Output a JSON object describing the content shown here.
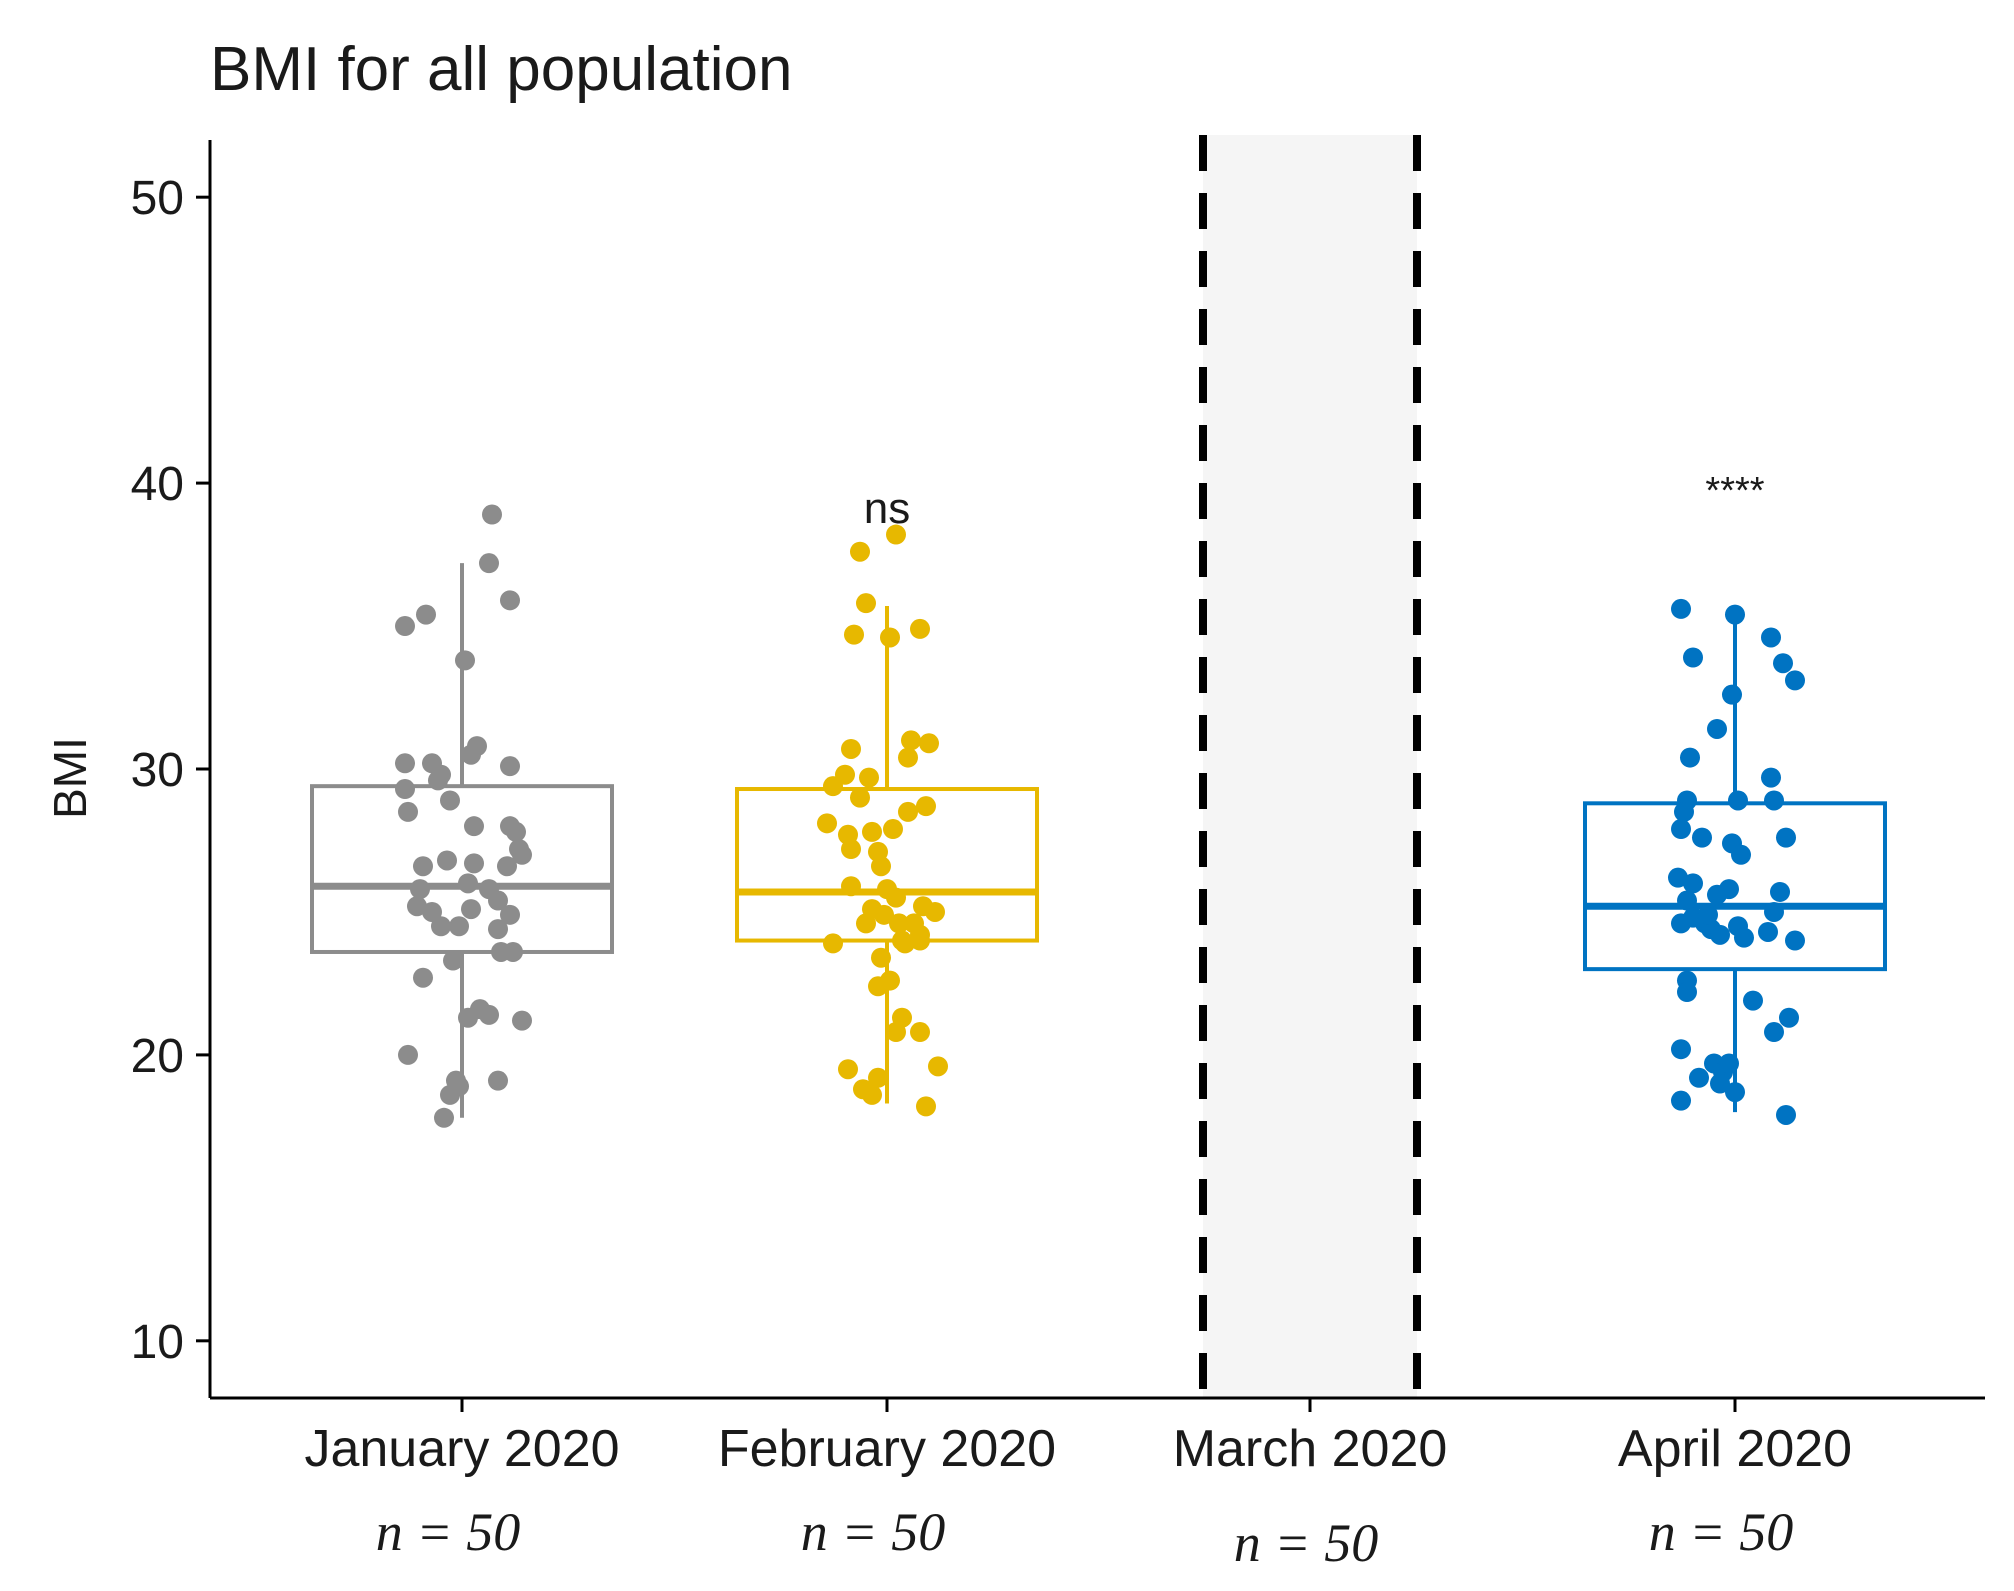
{
  "chart_data": {
    "type": "box",
    "title": "BMI for all population",
    "xlabel": "",
    "ylabel": "BMI",
    "ylim": [
      8,
      52
    ],
    "yticks": [
      10,
      20,
      30,
      40,
      50
    ],
    "grid": false,
    "legend": "none",
    "categories": [
      "January 2020",
      "February 2020",
      "March 2020",
      "April 2020"
    ],
    "n_labels": [
      "n = 50",
      "n = 50",
      "n = 50",
      "n = 50"
    ],
    "shaded_category": "March 2020",
    "groups": [
      {
        "name": "January 2020",
        "color": "#8C8C8C",
        "significance": "",
        "box": {
          "whisker_low": 17.8,
          "q1": 23.6,
          "median": 25.9,
          "q3": 29.4,
          "whisker_high": 37.2
        },
        "points": [
          [
            0.1,
            38.9
          ],
          [
            0.09,
            37.2
          ],
          [
            0.16,
            35.9
          ],
          [
            -0.12,
            35.4
          ],
          [
            -0.19,
            35.0
          ],
          [
            0.01,
            33.8
          ],
          [
            0.05,
            30.8
          ],
          [
            0.03,
            30.5
          ],
          [
            -0.19,
            30.2
          ],
          [
            -0.1,
            30.2
          ],
          [
            -0.07,
            29.8
          ],
          [
            -0.08,
            29.6
          ],
          [
            0.16,
            30.1
          ],
          [
            -0.19,
            29.3
          ],
          [
            -0.04,
            28.9
          ],
          [
            -0.18,
            28.5
          ],
          [
            0.04,
            28.0
          ],
          [
            0.16,
            28.0
          ],
          [
            0.18,
            27.8
          ],
          [
            0.19,
            27.2
          ],
          [
            0.2,
            27.0
          ],
          [
            -0.13,
            26.6
          ],
          [
            -0.05,
            26.8
          ],
          [
            0.04,
            26.7
          ],
          [
            0.15,
            26.6
          ],
          [
            -0.14,
            25.8
          ],
          [
            0.02,
            26.0
          ],
          [
            0.09,
            25.8
          ],
          [
            -0.15,
            25.2
          ],
          [
            -0.1,
            25.0
          ],
          [
            0.03,
            25.1
          ],
          [
            0.12,
            25.4
          ],
          [
            0.16,
            24.9
          ],
          [
            -0.07,
            24.5
          ],
          [
            -0.01,
            24.5
          ],
          [
            0.12,
            24.4
          ],
          [
            0.13,
            23.6
          ],
          [
            0.17,
            23.6
          ],
          [
            -0.03,
            23.3
          ],
          [
            -0.13,
            22.7
          ],
          [
            0.06,
            21.6
          ],
          [
            0.02,
            21.3
          ],
          [
            0.09,
            21.4
          ],
          [
            0.2,
            21.2
          ],
          [
            -0.18,
            20.0
          ],
          [
            -0.02,
            19.1
          ],
          [
            -0.04,
            18.6
          ],
          [
            -0.06,
            17.8
          ],
          [
            0.12,
            19.1
          ],
          [
            -0.01,
            18.9
          ]
        ]
      },
      {
        "name": "February 2020",
        "color": "#E7B800",
        "significance": "ns",
        "box": {
          "whisker_low": 18.3,
          "q1": 24.0,
          "median": 25.7,
          "q3": 29.3,
          "whisker_high": 35.7
        },
        "points": [
          [
            0.03,
            38.2
          ],
          [
            -0.09,
            37.6
          ],
          [
            -0.07,
            35.8
          ],
          [
            -0.11,
            34.7
          ],
          [
            0.01,
            34.6
          ],
          [
            0.11,
            34.9
          ],
          [
            0.08,
            31.0
          ],
          [
            0.14,
            30.9
          ],
          [
            0.07,
            30.4
          ],
          [
            -0.12,
            30.7
          ],
          [
            -0.14,
            29.8
          ],
          [
            -0.06,
            29.7
          ],
          [
            -0.18,
            29.4
          ],
          [
            -0.09,
            29.0
          ],
          [
            0.13,
            28.7
          ],
          [
            -0.2,
            28.1
          ],
          [
            0.07,
            28.5
          ],
          [
            -0.13,
            27.7
          ],
          [
            -0.05,
            27.8
          ],
          [
            0.02,
            27.9
          ],
          [
            -0.12,
            27.2
          ],
          [
            -0.03,
            27.1
          ],
          [
            -0.02,
            26.6
          ],
          [
            -0.12,
            25.9
          ],
          [
            0.03,
            25.5
          ],
          [
            0.12,
            25.2
          ],
          [
            0.16,
            25.0
          ],
          [
            -0.05,
            25.1
          ],
          [
            -0.01,
            24.9
          ],
          [
            0.04,
            24.6
          ],
          [
            0.09,
            24.6
          ],
          [
            0.11,
            24.2
          ],
          [
            -0.18,
            23.9
          ],
          [
            0.05,
            24.0
          ],
          [
            0.11,
            24.0
          ],
          [
            0.01,
            22.6
          ],
          [
            -0.03,
            22.4
          ],
          [
            0.05,
            21.3
          ],
          [
            0.03,
            20.8
          ],
          [
            0.11,
            20.8
          ],
          [
            -0.13,
            19.5
          ],
          [
            0.17,
            19.6
          ],
          [
            -0.03,
            19.2
          ],
          [
            -0.08,
            18.8
          ],
          [
            -0.05,
            18.6
          ],
          [
            0.13,
            18.2
          ],
          [
            -0.02,
            23.4
          ],
          [
            0.06,
            23.9
          ],
          [
            -0.07,
            24.6
          ],
          [
            0.0,
            25.8
          ]
        ]
      },
      {
        "name": "March 2020",
        "color": "#8C8C8C",
        "significance": "",
        "box": null,
        "points": []
      },
      {
        "name": "April 2020",
        "color": "#0073C2",
        "significance": "****",
        "box": {
          "whisker_low": 18.0,
          "q1": 23.0,
          "median": 25.2,
          "q3": 28.8,
          "whisker_high": 35.5
        },
        "points": [
          [
            -0.18,
            35.6
          ],
          [
            0.0,
            35.4
          ],
          [
            0.12,
            34.6
          ],
          [
            0.16,
            33.7
          ],
          [
            -0.14,
            33.9
          ],
          [
            0.2,
            33.1
          ],
          [
            -0.01,
            32.6
          ],
          [
            -0.06,
            31.4
          ],
          [
            -0.15,
            30.4
          ],
          [
            0.12,
            29.7
          ],
          [
            -0.16,
            28.9
          ],
          [
            -0.17,
            28.5
          ],
          [
            0.01,
            28.9
          ],
          [
            0.13,
            28.9
          ],
          [
            -0.11,
            27.6
          ],
          [
            -0.18,
            27.9
          ],
          [
            0.17,
            27.6
          ],
          [
            -0.01,
            27.4
          ],
          [
            0.02,
            27.0
          ],
          [
            -0.19,
            26.2
          ],
          [
            -0.14,
            26.0
          ],
          [
            -0.16,
            25.4
          ],
          [
            -0.06,
            25.6
          ],
          [
            -0.02,
            25.8
          ],
          [
            0.15,
            25.7
          ],
          [
            0.13,
            25.0
          ],
          [
            -0.18,
            24.6
          ],
          [
            -0.14,
            24.8
          ],
          [
            -0.1,
            24.6
          ],
          [
            -0.08,
            24.4
          ],
          [
            -0.05,
            24.2
          ],
          [
            0.01,
            24.5
          ],
          [
            0.11,
            24.3
          ],
          [
            0.2,
            24.0
          ],
          [
            -0.16,
            22.6
          ],
          [
            -0.16,
            22.2
          ],
          [
            0.06,
            21.9
          ],
          [
            0.18,
            21.3
          ],
          [
            0.13,
            20.8
          ],
          [
            -0.18,
            20.2
          ],
          [
            -0.07,
            19.7
          ],
          [
            -0.04,
            19.4
          ],
          [
            -0.12,
            19.2
          ],
          [
            -0.05,
            19.0
          ],
          [
            0.0,
            18.7
          ],
          [
            -0.18,
            18.4
          ],
          [
            0.17,
            17.9
          ],
          [
            -0.02,
            19.7
          ],
          [
            -0.09,
            24.9
          ],
          [
            0.03,
            24.1
          ]
        ]
      }
    ]
  }
}
